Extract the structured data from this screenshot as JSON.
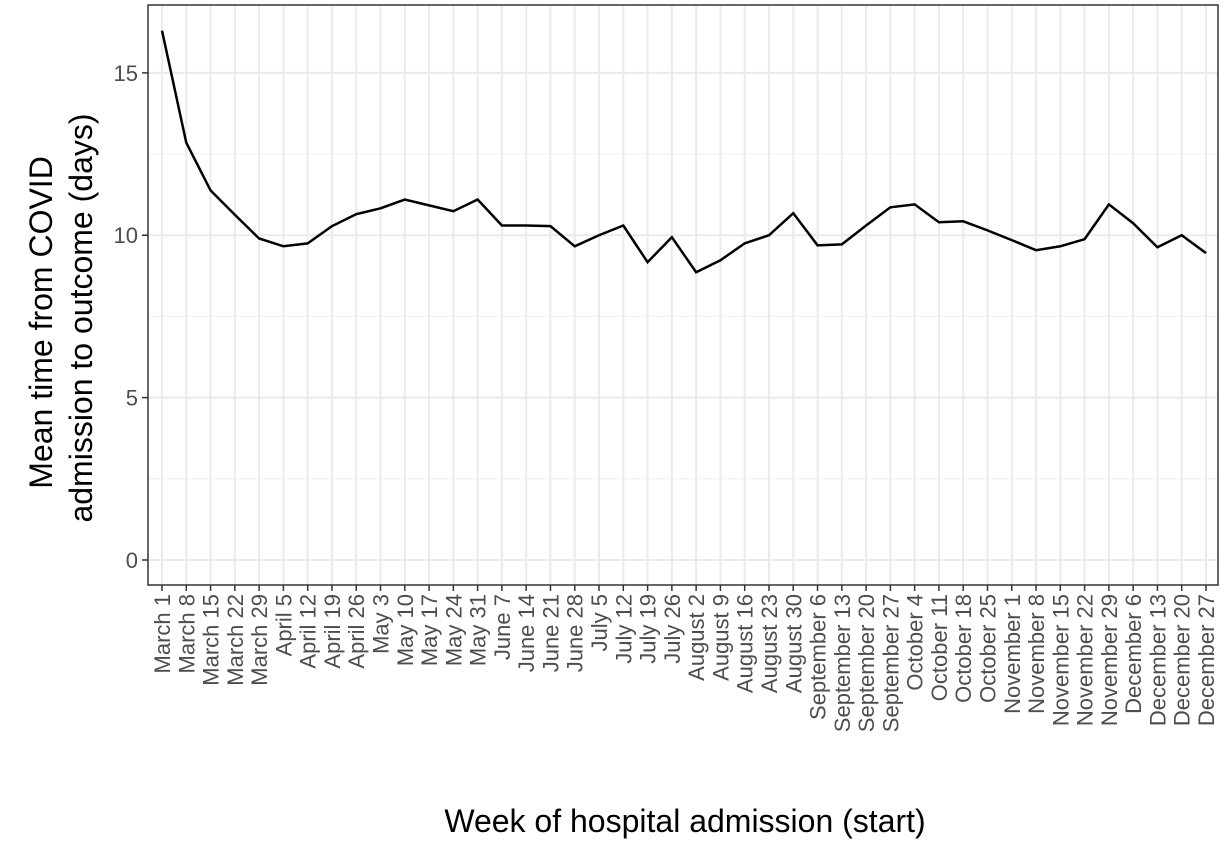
{
  "chart_data": {
    "type": "line",
    "xlabel": "Week of hospital admission (start)",
    "ylabel": [
      "Mean time from COVID",
      "admission to outcome (days)"
    ],
    "categories": [
      "March 1",
      "March 8",
      "March 15",
      "March 22",
      "March 29",
      "April 5",
      "April 12",
      "April 19",
      "April 26",
      "May 3",
      "May 10",
      "May 17",
      "May 24",
      "May 31",
      "June 7",
      "June 14",
      "June 21",
      "June 28",
      "July 5",
      "July 12",
      "July 19",
      "July 26",
      "August 2",
      "August 9",
      "August 16",
      "August 23",
      "August 30",
      "September 6",
      "September 13",
      "September 20",
      "September 27",
      "October 4",
      "October 11",
      "October 18",
      "October 25",
      "November 1",
      "November 8",
      "November 15",
      "November 22",
      "November 29",
      "December 6",
      "December 13",
      "December 20",
      "December 27"
    ],
    "series": [
      {
        "color": "#000000",
        "values": [
          16.3,
          12.85,
          11.38,
          10.63,
          9.9,
          9.66,
          9.75,
          10.28,
          10.65,
          10.83,
          11.1,
          10.92,
          10.74,
          11.1,
          10.3,
          10.3,
          10.28,
          9.66,
          10.0,
          10.3,
          9.17,
          9.94,
          8.86,
          9.23,
          9.75,
          10.0,
          10.68,
          9.69,
          9.72,
          10.3,
          10.86,
          10.95,
          10.4,
          10.43,
          10.15,
          9.85,
          9.54,
          9.66,
          9.88,
          10.95,
          10.37,
          9.63,
          10.0,
          9.45
        ]
      }
    ],
    "ylim": [
      -0.77,
      17.09
    ],
    "yticks": [
      0,
      5,
      10,
      15
    ],
    "y_minor_grid": [
      2.5,
      7.5,
      12.5
    ],
    "grid": true
  }
}
